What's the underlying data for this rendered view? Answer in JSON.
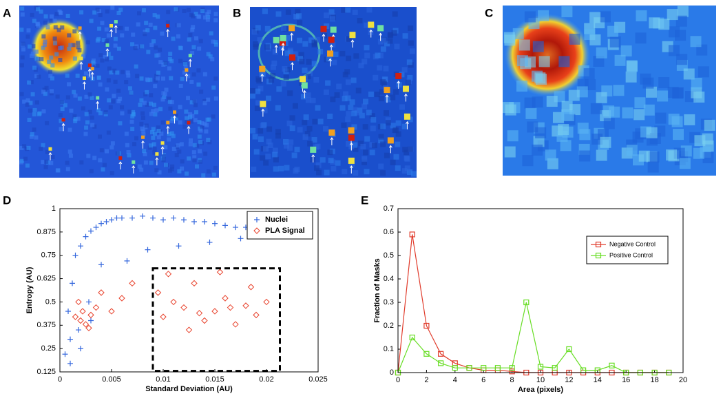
{
  "panel_labels": [
    "A",
    "B",
    "C",
    "D",
    "E"
  ],
  "chart_data": [
    {
      "type": "scatter",
      "xlabel": "Standard Deviation (AU)",
      "ylabel": "Entropy (AU)",
      "xlim": [
        0,
        0.025
      ],
      "xticks": [
        0,
        0.005,
        0.01,
        0.015,
        0.02,
        0.025
      ],
      "ylim": [
        0.125,
        1
      ],
      "yticks": [
        0.125,
        0.25,
        0.375,
        0.5,
        0.625,
        0.75,
        0.875,
        1
      ],
      "legend": "top-right",
      "highlight_box": {
        "xlim": [
          0.009,
          0.0213
        ],
        "ylim": [
          0.13,
          0.68
        ]
      },
      "series": [
        {
          "name": "Nuclei",
          "color": "#3366dd",
          "marker": "plus",
          "x": [
            0.0005,
            0.001,
            0.0008,
            0.0012,
            0.0015,
            0.002,
            0.0018,
            0.0025,
            0.003,
            0.0028,
            0.0035,
            0.004,
            0.0045,
            0.005,
            0.0055,
            0.006,
            0.007,
            0.008,
            0.009,
            0.01,
            0.011,
            0.012,
            0.013,
            0.014,
            0.015,
            0.016,
            0.017,
            0.018,
            0.019,
            0.0205,
            0.001,
            0.002,
            0.003,
            0.004,
            0.0065,
            0.0085,
            0.0115,
            0.0145,
            0.0175
          ],
          "values": [
            0.22,
            0.3,
            0.45,
            0.6,
            0.75,
            0.8,
            0.35,
            0.85,
            0.88,
            0.5,
            0.9,
            0.92,
            0.93,
            0.94,
            0.95,
            0.95,
            0.95,
            0.96,
            0.95,
            0.94,
            0.95,
            0.94,
            0.93,
            0.93,
            0.92,
            0.91,
            0.9,
            0.9,
            0.89,
            0.86,
            0.17,
            0.25,
            0.4,
            0.7,
            0.72,
            0.78,
            0.8,
            0.82,
            0.84
          ]
        },
        {
          "name": "PLA Signal",
          "color": "#e8402a",
          "marker": "diamond",
          "x": [
            0.0015,
            0.002,
            0.0022,
            0.0025,
            0.003,
            0.0018,
            0.0028,
            0.0035,
            0.004,
            0.005,
            0.006,
            0.007,
            0.0095,
            0.01,
            0.011,
            0.012,
            0.013,
            0.014,
            0.015,
            0.016,
            0.017,
            0.018,
            0.019,
            0.02,
            0.0105,
            0.0125,
            0.0155,
            0.0185,
            0.0135,
            0.0165
          ],
          "values": [
            0.42,
            0.4,
            0.45,
            0.38,
            0.43,
            0.5,
            0.36,
            0.47,
            0.55,
            0.45,
            0.52,
            0.6,
            0.55,
            0.42,
            0.5,
            0.47,
            0.6,
            0.4,
            0.45,
            0.52,
            0.38,
            0.48,
            0.43,
            0.5,
            0.65,
            0.35,
            0.66,
            0.58,
            0.44,
            0.47
          ]
        }
      ]
    },
    {
      "type": "line",
      "xlabel": "Area (pixels)",
      "ylabel": "Fraction of Masks",
      "x": [
        0,
        1,
        2,
        3,
        4,
        5,
        6,
        7,
        8,
        9,
        10,
        11,
        12,
        13,
        14,
        15,
        16,
        17,
        18,
        19
      ],
      "xlim": [
        0,
        20
      ],
      "xticks": [
        0,
        2,
        4,
        6,
        8,
        10,
        12,
        14,
        16,
        18,
        20
      ],
      "ylim": [
        0,
        0.7
      ],
      "yticks": [
        0,
        0.1,
        0.2,
        0.3,
        0.4,
        0.5,
        0.6,
        0.7
      ],
      "legend": "upper-right",
      "series": [
        {
          "name": "Negative Control",
          "color": "#e03a2a",
          "values": [
            0,
            0.59,
            0.2,
            0.08,
            0.04,
            0.02,
            0.01,
            0.01,
            0.005,
            0,
            0,
            0,
            0,
            0,
            0,
            0,
            0,
            0,
            0,
            0
          ]
        },
        {
          "name": "Positive Control",
          "color": "#66dd22",
          "values": [
            0,
            0.15,
            0.08,
            0.04,
            0.02,
            0.02,
            0.02,
            0.02,
            0.02,
            0.3,
            0.025,
            0.02,
            0.1,
            0.01,
            0.01,
            0.03,
            0,
            0,
            0,
            0
          ]
        }
      ]
    }
  ]
}
